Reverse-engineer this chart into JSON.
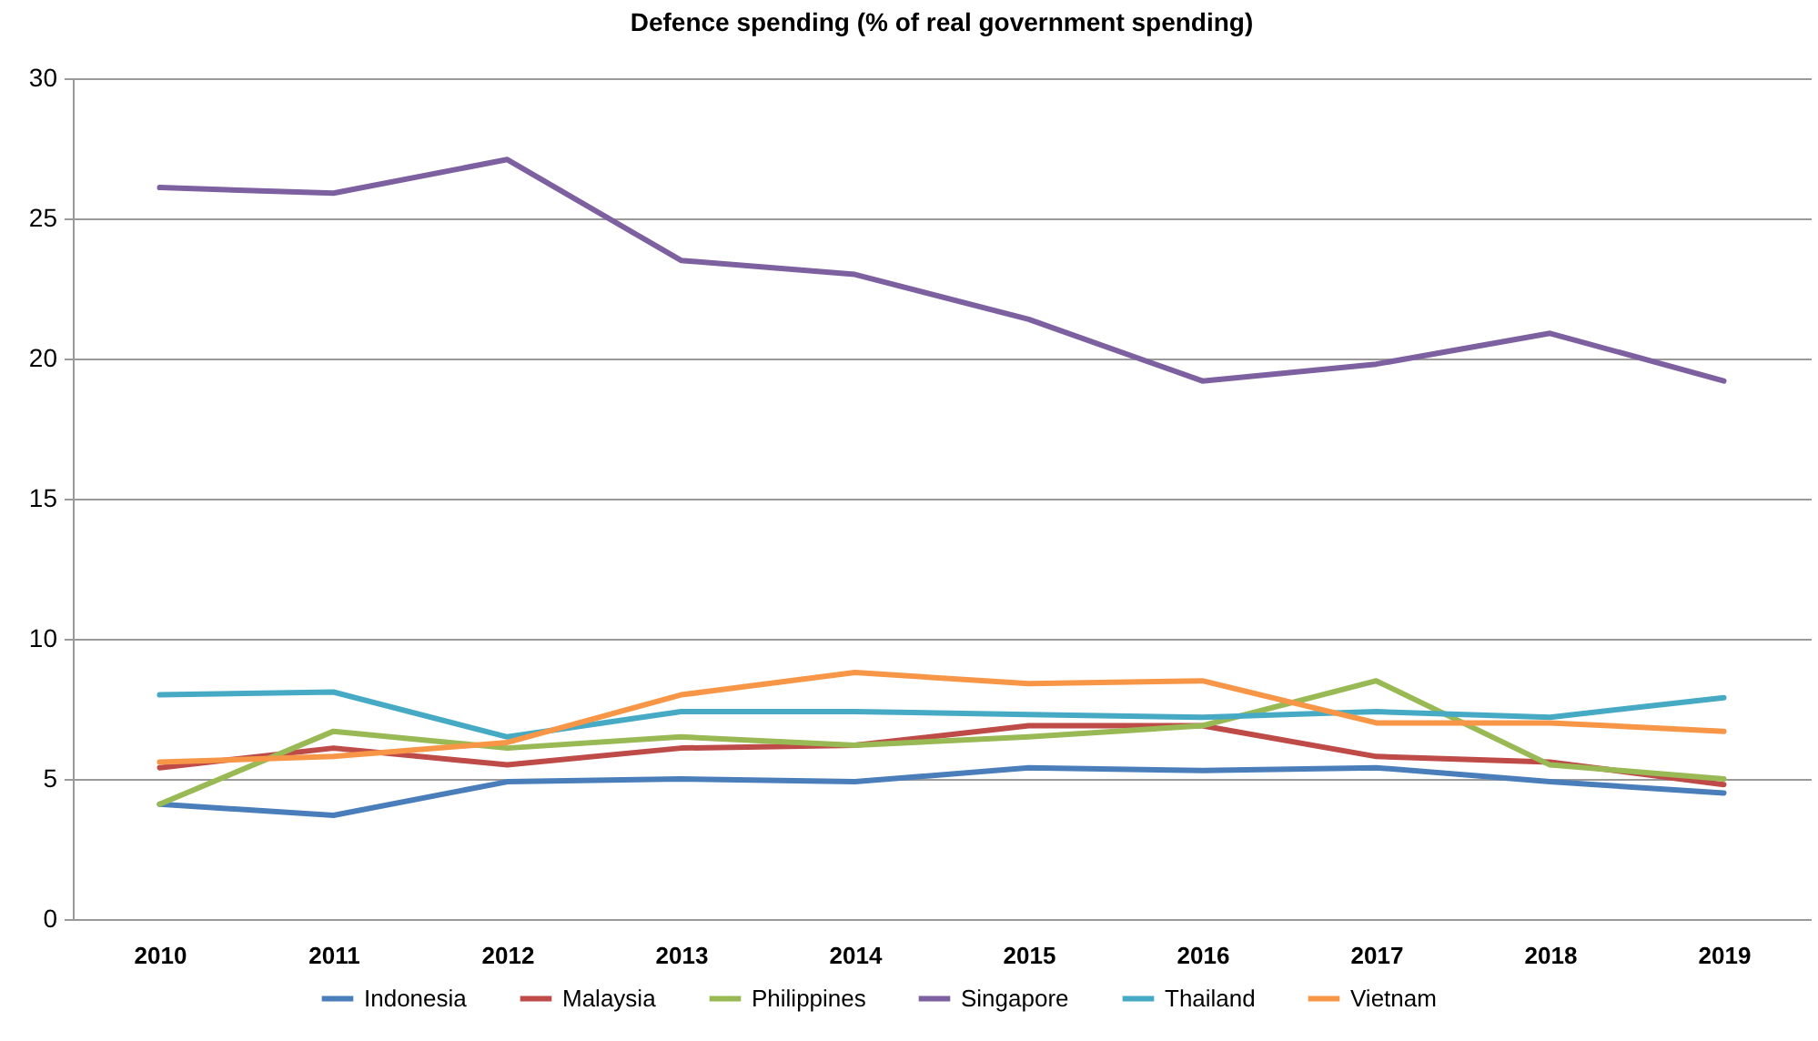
{
  "chart_data": {
    "type": "line",
    "title": "Defence spending (% of real government spending)",
    "categories": [
      "2010",
      "2011",
      "2012",
      "2013",
      "2014",
      "2015",
      "2016",
      "2017",
      "2018",
      "2019"
    ],
    "series": [
      {
        "name": "Indonesia",
        "color": "#4a7ebb",
        "values": [
          4.1,
          3.7,
          4.9,
          5.0,
          4.9,
          5.4,
          5.3,
          5.4,
          4.9,
          4.5
        ]
      },
      {
        "name": "Malaysia",
        "color": "#be4b48",
        "values": [
          5.4,
          6.1,
          5.5,
          6.1,
          6.2,
          6.9,
          6.9,
          5.8,
          5.6,
          4.8
        ]
      },
      {
        "name": "Philippines",
        "color": "#98b954",
        "values": [
          4.1,
          6.7,
          6.1,
          6.5,
          6.2,
          6.5,
          6.9,
          8.5,
          5.5,
          5.0
        ]
      },
      {
        "name": "Singapore",
        "color": "#7d60a0",
        "values": [
          26.1,
          25.9,
          27.1,
          23.5,
          23.0,
          21.4,
          19.2,
          19.8,
          20.9,
          19.2
        ]
      },
      {
        "name": "Thailand",
        "color": "#46aac5",
        "values": [
          8.0,
          8.1,
          6.5,
          7.4,
          7.4,
          7.3,
          7.2,
          7.4,
          7.2,
          7.9
        ]
      },
      {
        "name": "Vietnam",
        "color": "#f79646",
        "values": [
          5.6,
          5.8,
          6.3,
          8.0,
          8.8,
          8.4,
          8.5,
          7.0,
          7.0,
          6.7
        ]
      }
    ],
    "ylim": [
      0,
      30
    ],
    "yticks": [
      0,
      5,
      10,
      15,
      20,
      25,
      30
    ],
    "grid": "y",
    "legend": "bottom",
    "marker": "none",
    "line_style": "solid"
  }
}
